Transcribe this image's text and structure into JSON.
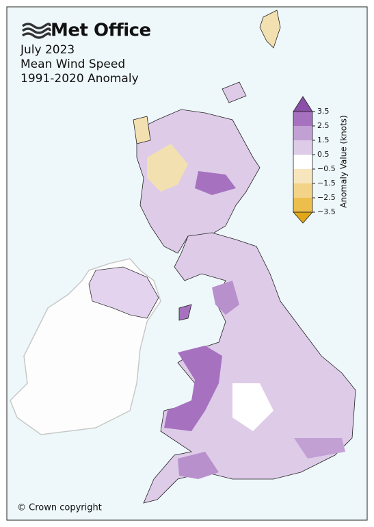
{
  "logo": "Met Office",
  "title": [
    "July 2023",
    "Mean Wind Speed",
    "1991-2020 Anomaly"
  ],
  "colorbar": {
    "label": "Anomaly Value (knots)",
    "ticks": [
      3.5,
      2.5,
      1.5,
      0.5,
      {
        "value": -0.5,
        "label": "−0.5"
      },
      {
        "value": -1.5,
        "label": "−1.5"
      },
      {
        "value": -2.5,
        "label": "−2.5"
      },
      {
        "value": -3.5,
        "label": "−3.5"
      }
    ],
    "colors": [
      "#8a4fa8",
      "#a672bf",
      "#c2a0d4",
      "#ddcbe8",
      "#ffffff",
      "#f7e6bd",
      "#f2d387",
      "#ecbf4c",
      "#e0a818"
    ]
  },
  "copyright": "© Crown copyright"
}
